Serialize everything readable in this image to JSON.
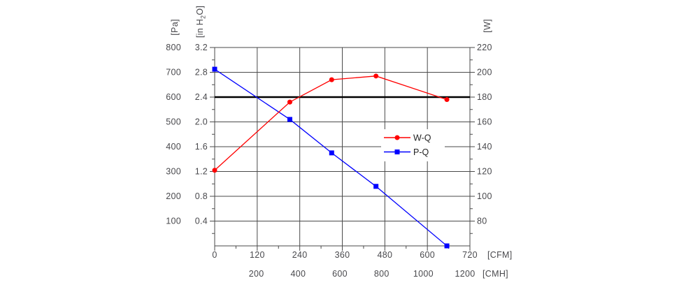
{
  "page": {
    "background": "#ffffff"
  },
  "chart_data": {
    "type": "line",
    "title": "",
    "x_cfm": [
      0,
      212,
      330,
      455,
      655
    ],
    "series": [
      {
        "name": "W-Q",
        "color": "#ff0000",
        "marker": "circle",
        "y_axis": "W",
        "values": [
          121,
          176,
          194,
          197,
          178
        ]
      },
      {
        "name": "P-Q",
        "color": "#0000ff",
        "marker": "square",
        "y_axis": "inH2O",
        "values": [
          2.85,
          2.04,
          1.5,
          0.96,
          0.0
        ]
      }
    ],
    "axes": {
      "pa": {
        "label": "[Pa]",
        "ticks": [
          800,
          700,
          600,
          500,
          400,
          300,
          200,
          100
        ],
        "range": [
          0,
          800
        ]
      },
      "inh2o": {
        "label_pre": "[in H",
        "label_sub": "2",
        "label_post": "O]",
        "ticks": [
          3.2,
          2.8,
          2.4,
          2.0,
          1.6,
          1.2,
          0.8,
          0.4
        ],
        "range": [
          0,
          3.2
        ],
        "minor_step": 0.2
      },
      "w": {
        "label": "[W]",
        "ticks": [
          220,
          200,
          180,
          160,
          140,
          120,
          100,
          80
        ],
        "range": [
          60,
          220
        ],
        "minor_step": 10
      },
      "cfm": {
        "unit": "[CFM]",
        "ticks": [
          0,
          120,
          240,
          360,
          480,
          600,
          720
        ],
        "range": [
          0,
          720
        ],
        "minor_step": 60
      },
      "cmh": {
        "unit": "[CMH]",
        "ticks": [
          200,
          400,
          600,
          800,
          1000,
          1200
        ],
        "cfm_per_cmh": 0.5886
      }
    },
    "reference_line": {
      "value_inh2o": 2.4,
      "color": "#000000"
    },
    "legend": {
      "position": "inside",
      "entries": [
        "W-Q",
        "P-Q"
      ]
    },
    "grid": true,
    "colors": {
      "grid": "#4a4a4a",
      "text": "#49494d"
    }
  }
}
